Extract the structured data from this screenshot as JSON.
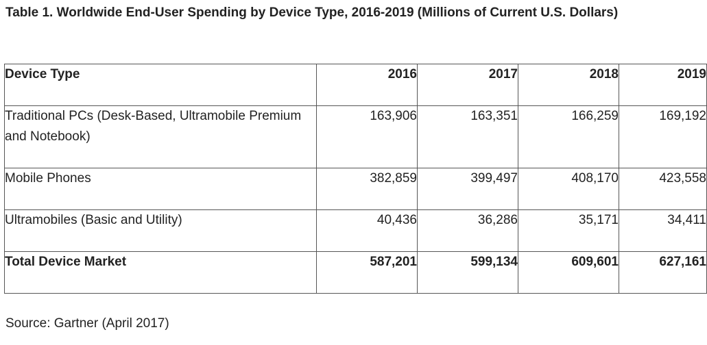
{
  "title": "Table 1. Worldwide End-User Spending by Device Type, 2016-2019 (Millions of Current U.S. Dollars)",
  "table": {
    "headers": [
      "Device Type",
      "2016",
      "2017",
      "2018",
      "2019"
    ],
    "rows": [
      {
        "label": "Traditional PCs (Desk-Based, Ultramobile Premium and Notebook)",
        "values": [
          "163,906",
          "163,351",
          "166,259",
          "169,192"
        ]
      },
      {
        "label": "Mobile Phones",
        "values": [
          "382,859",
          "399,497",
          "408,170",
          "423,558"
        ]
      },
      {
        "label": "Ultramobiles (Basic and Utility)",
        "values": [
          "40,436",
          "36,286",
          "35,171",
          "34,411"
        ]
      },
      {
        "label": "Total Device Market",
        "values": [
          "587,201",
          "599,134",
          "609,601",
          "627,161"
        ]
      }
    ]
  },
  "source": "Source: Gartner (April 2017)"
}
